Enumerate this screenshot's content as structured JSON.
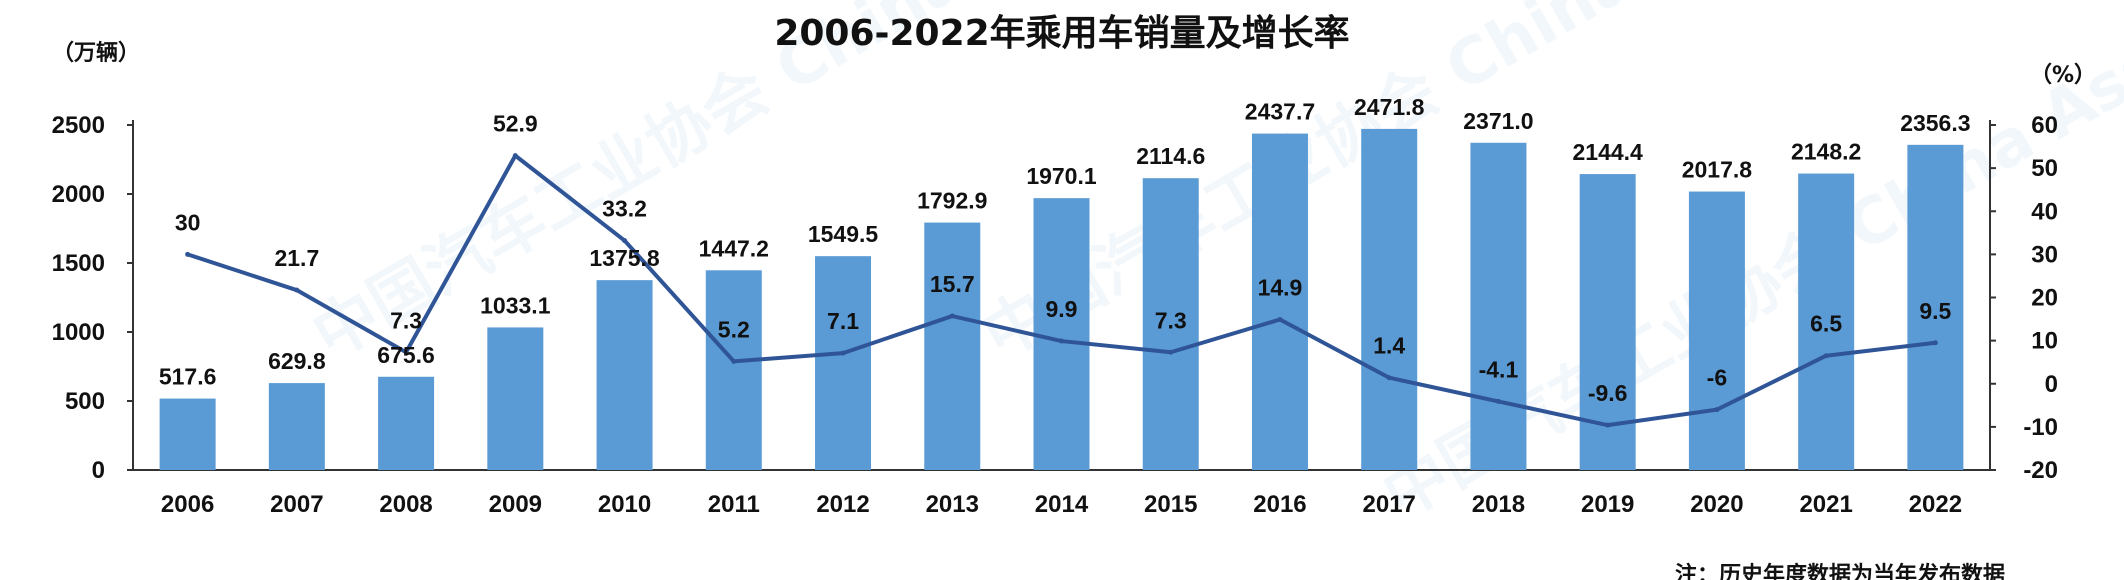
{
  "chart_data": {
    "type": "bar",
    "title": "2006-2022年乘用车销量及增长率",
    "ylabel_left": "（万辆）",
    "ylabel_right": "（%）",
    "note": "注：历史年度数据为当年发布数据",
    "categories": [
      "2006",
      "2007",
      "2008",
      "2009",
      "2010",
      "2011",
      "2012",
      "2013",
      "2014",
      "2015",
      "2016",
      "2017",
      "2018",
      "2019",
      "2020",
      "2021",
      "2022"
    ],
    "series": [
      {
        "type": "bar",
        "axis": "left",
        "values": [
          517.6,
          629.8,
          675.6,
          1033.1,
          1375.8,
          1447.2,
          1549.5,
          1792.9,
          1970.1,
          2114.6,
          2437.7,
          2471.8,
          2371.0,
          2144.4,
          2017.8,
          2148.2,
          2356.3
        ],
        "labels": [
          "517.6",
          "629.8",
          "675.6",
          "1033.1",
          "1375.8",
          "1447.2",
          "1549.5",
          "1792.9",
          "1970.1",
          "2114.6",
          "2437.7",
          "2471.8",
          "2371.0",
          "2144.4",
          "2017.8",
          "2148.2",
          "2356.3"
        ]
      },
      {
        "type": "line",
        "axis": "right",
        "values": [
          30,
          21.7,
          7.3,
          52.9,
          33.2,
          5.2,
          7.1,
          15.7,
          9.9,
          7.3,
          14.9,
          1.4,
          -4.1,
          -9.6,
          -6,
          6.5,
          9.5
        ],
        "labels": [
          "30",
          "21.7",
          "7.3",
          "52.9",
          "33.2",
          "5.2",
          "7.1",
          "15.7",
          "9.9",
          "7.3",
          "14.9",
          "1.4",
          "-4.1",
          "-9.6",
          "-6",
          "6.5",
          "9.5"
        ]
      }
    ],
    "ylim_left": [
      0,
      2500
    ],
    "yticks_left": [
      "0",
      "500",
      "1000",
      "1500",
      "2000",
      "2500"
    ],
    "ylim_right": [
      -20,
      60
    ],
    "yticks_right": [
      "-20",
      "-10",
      "0",
      "10",
      "20",
      "30",
      "40",
      "50",
      "60"
    ],
    "colors": {
      "bar": "#5b9bd5",
      "line": "#2f5597",
      "axis": "#333333"
    },
    "watermark": "中国汽车工业协会 China Association of Automobile Manufacturers",
    "grid": false,
    "legend": "none"
  }
}
